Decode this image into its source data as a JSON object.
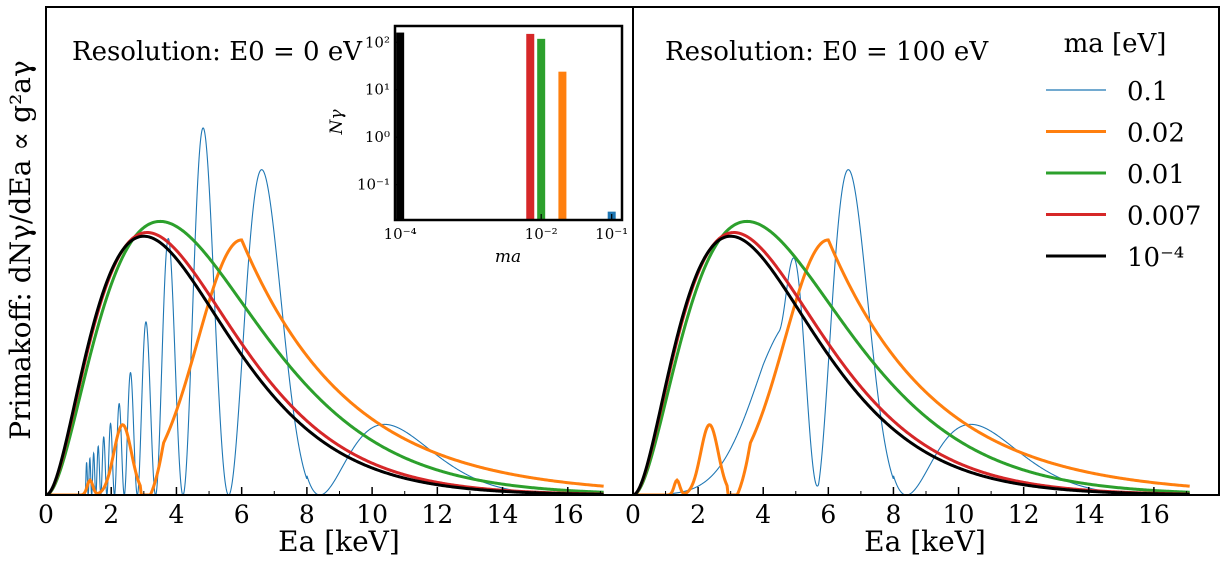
{
  "figure": {
    "ylabel": "Primakoff: dNγ/dEa ∝ g²aγ",
    "legend_title": "ma [eV]"
  },
  "chart_data": [
    {
      "type": "line",
      "title": "Resolution: E0 = 0 eV",
      "xlabel": "Ea [keV]",
      "ylabel": "Primakoff: dNγ/dEa ∝ g²aγ",
      "xlim": [
        0,
        18
      ],
      "ylim": [
        0,
        1.32
      ],
      "xticks": [
        0,
        2,
        4,
        6,
        8,
        10,
        12,
        14,
        16
      ],
      "xticklabels": [
        "0",
        "2",
        "4",
        "6",
        "8",
        "10",
        "12",
        "14",
        "16"
      ],
      "yticks": [],
      "grid": false,
      "resolution_eV": 0,
      "series": [
        {
          "name": "0.1",
          "color": "#1f77b4",
          "width": "thin"
        },
        {
          "name": "0.02",
          "color": "#ff7f0e",
          "width": "thick"
        },
        {
          "name": "0.01",
          "color": "#2ca02c",
          "width": "thick"
        },
        {
          "name": "0.007",
          "color": "#d62728",
          "width": "thick"
        },
        {
          "name": "10⁻⁴",
          "color": "#000000",
          "width": "thick"
        }
      ],
      "envelope_peaks": {
        "0.1": 1.06,
        "0.02": 0.71,
        "0.01": 0.74,
        "0.007": 0.71,
        "10⁻⁴": 0.7
      },
      "envelope_peak_positions_keV": {
        "0.1": 5.4,
        "0.02": 6.0,
        "0.01": 3.5,
        "0.007": 3.1,
        "10⁻⁴": 3.0
      }
    },
    {
      "type": "line",
      "title": "Resolution: E0 = 100 eV",
      "xlabel": "Ea [keV]",
      "xlim": [
        0,
        18
      ],
      "ylim": [
        0,
        1.32
      ],
      "xticks": [
        0,
        2,
        4,
        6,
        8,
        10,
        12,
        14,
        16
      ],
      "xticklabels": [
        "0",
        "2",
        "4",
        "6",
        "8",
        "10",
        "12",
        "14",
        "16"
      ],
      "yticks": [],
      "grid": false,
      "resolution_eV": 100,
      "legend_placement": "top-right",
      "series": [
        {
          "name": "0.1",
          "color": "#1f77b4",
          "width": "thin"
        },
        {
          "name": "0.02",
          "color": "#ff7f0e",
          "width": "thick"
        },
        {
          "name": "0.01",
          "color": "#2ca02c",
          "width": "thick"
        },
        {
          "name": "0.007",
          "color": "#d62728",
          "width": "thick"
        },
        {
          "name": "10⁻⁴",
          "color": "#000000",
          "width": "thick"
        }
      ]
    },
    {
      "type": "bar",
      "title": "",
      "xlabel": "ma",
      "ylabel": "Nγ",
      "xscale": "log",
      "yscale": "log",
      "xlim": [
        8.45e-05,
        0.14
      ],
      "ylim": [
        0.018,
        220
      ],
      "xticks": [
        0.0001,
        0.01,
        0.1
      ],
      "xticklabels": [
        "10⁻⁴",
        "10⁻²",
        "10⁻¹"
      ],
      "yticks": [
        0.1,
        1,
        10,
        100
      ],
      "yticklabels": [
        "10⁻¹",
        "10⁰",
        "10¹",
        "10²"
      ],
      "bars": [
        {
          "ma": 0.0001,
          "value": 160,
          "color": "#000000"
        },
        {
          "ma": 0.007,
          "value": 150,
          "color": "#d62728"
        },
        {
          "ma": 0.01,
          "value": 118,
          "color": "#2ca02c"
        },
        {
          "ma": 0.02,
          "value": 24,
          "color": "#ff7f0e"
        },
        {
          "ma": 0.1,
          "value": 0.027,
          "color": "#1f77b4"
        }
      ]
    }
  ]
}
